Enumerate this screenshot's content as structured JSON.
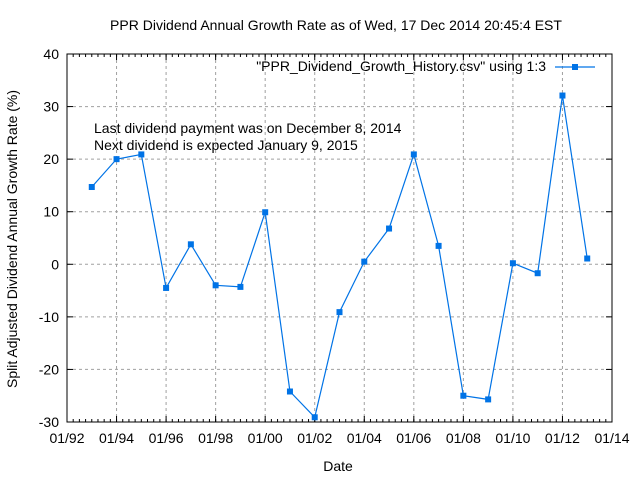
{
  "chart_data": {
    "type": "line",
    "title": "PPR Dividend Annual Growth Rate as of Wed, 17 Dec 2014 20:45:4 EST",
    "xlabel": "Date",
    "ylabel": "Split Adjusted Dividend Annual Growth Rate (%)",
    "xlim": [
      1992,
      2014
    ],
    "ylim": [
      -30,
      40
    ],
    "grid": true,
    "legend_position": "top-right",
    "x_tick_labels": [
      "01/92",
      "01/94",
      "01/96",
      "01/98",
      "01/00",
      "01/02",
      "01/04",
      "01/06",
      "01/08",
      "01/10",
      "01/12",
      "01/14"
    ],
    "x_ticks": [
      1992,
      1994,
      1996,
      1998,
      2000,
      2002,
      2004,
      2006,
      2008,
      2010,
      2012,
      2014
    ],
    "y_ticks": [
      -30,
      -20,
      -10,
      0,
      10,
      20,
      30,
      40
    ],
    "y_tick_labels": [
      "-30",
      "-20",
      "-10",
      "0",
      "10",
      "20",
      "30",
      "40"
    ],
    "annotations": [
      "Last dividend payment was on December 8, 2014",
      "Next dividend is expected January 9, 2015"
    ],
    "series": [
      {
        "name": "\"PPR_Dividend_Growth_History.csv\" using 1:3",
        "color": "#0073e6",
        "x": [
          1993,
          1994,
          1995,
          1996,
          1997,
          1998,
          1999,
          2000,
          2001,
          2002,
          2003,
          2004,
          2005,
          2006,
          2007,
          2008,
          2009,
          2010,
          2011,
          2012,
          2013
        ],
        "values": [
          14.7,
          20.0,
          20.9,
          -4.5,
          3.8,
          -4.0,
          -4.3,
          9.9,
          -24.2,
          -29.1,
          -9.1,
          0.5,
          6.8,
          20.9,
          3.5,
          -25.0,
          -25.7,
          0.2,
          -1.7,
          32.1,
          1.1
        ]
      }
    ]
  }
}
